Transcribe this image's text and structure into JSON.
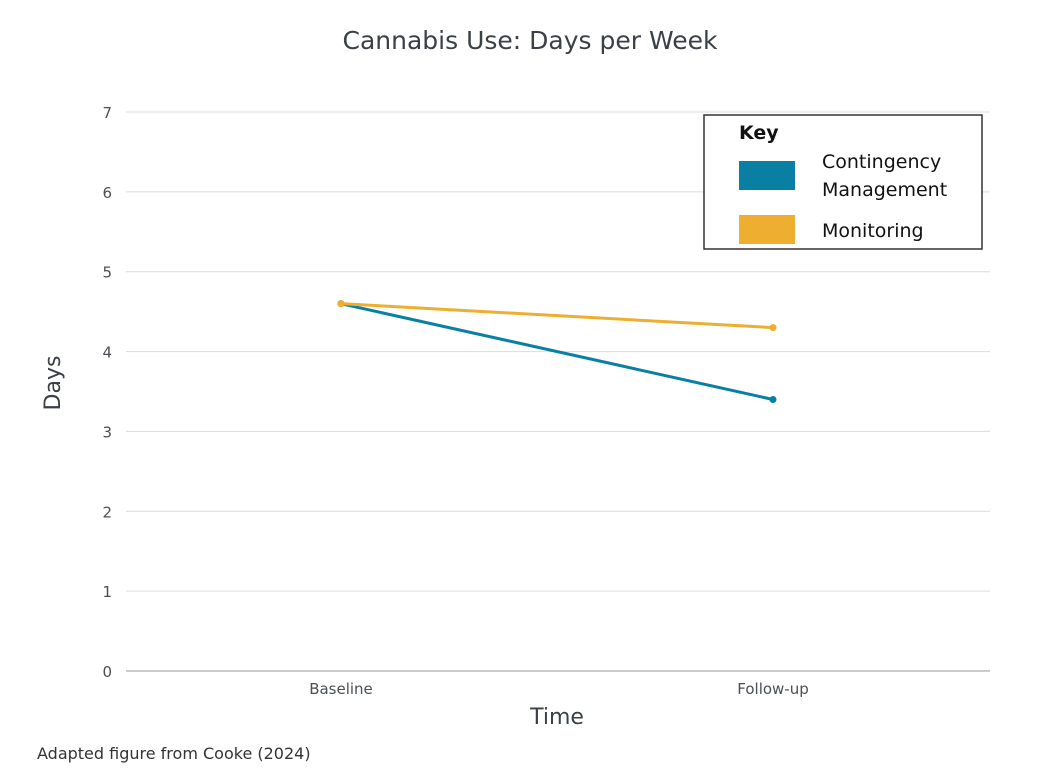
{
  "chart_data": {
    "type": "line",
    "title": "Cannabis Use: Days per Week",
    "xlabel": "Time",
    "ylabel": "Days",
    "categories": [
      "Baseline",
      "Follow-up"
    ],
    "ylim": [
      0,
      7
    ],
    "yticks": [
      "0",
      "1",
      "2",
      "3",
      "4",
      "5",
      "6",
      "7"
    ],
    "grid": true,
    "legend": {
      "title": "Key",
      "placement": "top-right",
      "entries": [
        {
          "lines": [
            "Contingency",
            "Management"
          ],
          "color": "#0a7fa4"
        },
        {
          "lines": [
            "Monitoring"
          ],
          "color": "#eeae30"
        }
      ]
    },
    "series": [
      {
        "name": "Contingency Management",
        "color": "#0a7fa4",
        "values": [
          4.6,
          3.4
        ]
      },
      {
        "name": "Monitoring",
        "color": "#eeae30",
        "values": [
          4.6,
          4.3
        ]
      }
    ]
  },
  "footnote": "Adapted figure from Cooke (2024)"
}
